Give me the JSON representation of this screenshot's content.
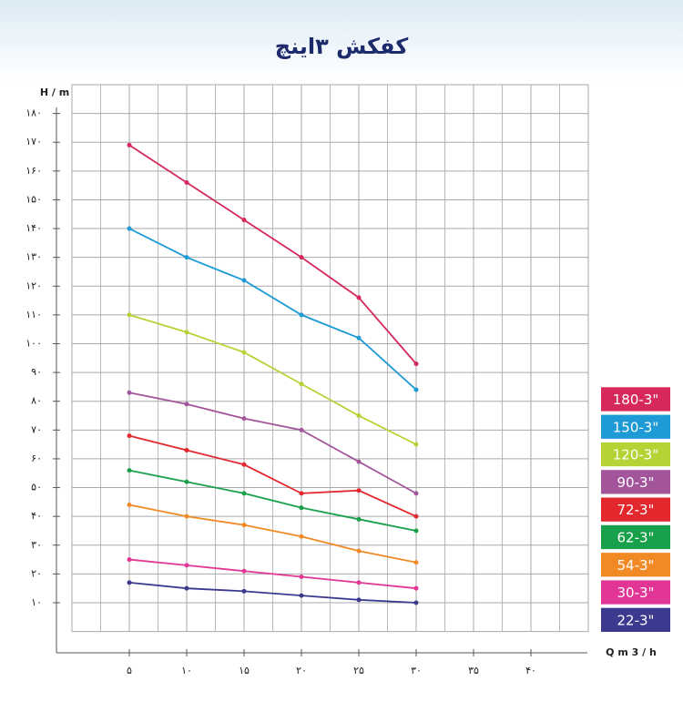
{
  "chart_data": {
    "type": "line",
    "title": "کفکش ۳اینچ",
    "y_label": "H / m",
    "x_label": "Q m 3 / h",
    "x": [
      5,
      10,
      15,
      20,
      25,
      30
    ],
    "xlim": [
      0,
      45
    ],
    "xticks": [
      {
        "value": 5,
        "label": "۵"
      },
      {
        "value": 10,
        "label": "۱۰"
      },
      {
        "value": 15,
        "label": "۱۵"
      },
      {
        "value": 20,
        "label": "۲۰"
      },
      {
        "value": 25,
        "label": "۲۵"
      },
      {
        "value": 30,
        "label": "۳۰"
      },
      {
        "value": 35,
        "label": "۳۵"
      },
      {
        "value": 40,
        "label": "۴۰"
      }
    ],
    "ylim": [
      0,
      190
    ],
    "yticks": [
      {
        "value": 10,
        "label": "۱۰"
      },
      {
        "value": 20,
        "label": "۲۰"
      },
      {
        "value": 30,
        "label": "۳۰"
      },
      {
        "value": 40,
        "label": "۴۰"
      },
      {
        "value": 50,
        "label": "۵۰"
      },
      {
        "value": 60,
        "label": "۶۰"
      },
      {
        "value": 70,
        "label": "۷۰"
      },
      {
        "value": 80,
        "label": "۸۰"
      },
      {
        "value": 90,
        "label": "۹۰"
      },
      {
        "value": 100,
        "label": "۱۰۰"
      },
      {
        "value": 110,
        "label": "۱۱۰"
      },
      {
        "value": 120,
        "label": "۱۲۰"
      },
      {
        "value": 130,
        "label": "۱۳۰"
      },
      {
        "value": 140,
        "label": "۱۴۰"
      },
      {
        "value": 150,
        "label": "۱۵۰"
      },
      {
        "value": 160,
        "label": "۱۶۰"
      },
      {
        "value": 170,
        "label": "۱۷۰"
      },
      {
        "value": 180,
        "label": "۱۸۰"
      }
    ],
    "grid": true,
    "legend": "right",
    "series": [
      {
        "name": "180-3\"",
        "color": "#d6285a",
        "values": [
          169,
          156,
          143,
          130,
          116,
          93
        ]
      },
      {
        "name": "150-3\"",
        "color": "#1e9ad6",
        "values": [
          140,
          130,
          122,
          110,
          102,
          84
        ]
      },
      {
        "name": "120-3\"",
        "color": "#b5d334",
        "values": [
          110,
          104,
          97,
          86,
          75,
          65
        ]
      },
      {
        "name": "90-3\"",
        "color": "#a2559b",
        "values": [
          83,
          79,
          74,
          70,
          59,
          48
        ]
      },
      {
        "name": "72-3\"",
        "color": "#e2282d",
        "values": [
          68,
          63,
          58,
          48,
          49,
          40
        ]
      },
      {
        "name": "62-3\"",
        "color": "#19a04b",
        "values": [
          56,
          52,
          48,
          43,
          39,
          35
        ]
      },
      {
        "name": "54-3\"",
        "color": "#f18a25",
        "values": [
          44,
          40,
          37,
          33,
          28,
          24
        ]
      },
      {
        "name": "30-3\"",
        "color": "#e23696",
        "values": [
          25,
          23,
          21,
          19,
          17,
          15
        ]
      },
      {
        "name": "22-3\"",
        "color": "#3b3a8f",
        "values": [
          17,
          15,
          14,
          12.5,
          11,
          10
        ]
      }
    ]
  }
}
